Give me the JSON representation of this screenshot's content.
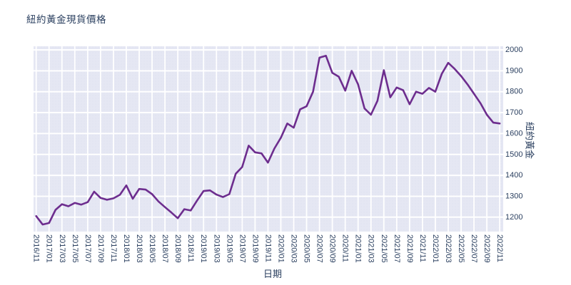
{
  "page": {
    "title": "紐約黃金現貨價格"
  },
  "colors": {
    "line": "#6d2d8e",
    "plot_background": "#e5e7f3",
    "plot_background_dot": "#d9dcec",
    "gridline": "#ffffff",
    "text": "#2a3f5f"
  },
  "chart_data": {
    "type": "line",
    "title": "紐約黃金現貨價格",
    "xlabel": "日期",
    "ylabel": "紐約黃金",
    "legend": "none",
    "grid": true,
    "y_axis_side": "right",
    "ylim": [
      1131,
      2017
    ],
    "y_ticks": [
      1200,
      1300,
      1400,
      1500,
      1600,
      1700,
      1800,
      1900,
      2000
    ],
    "x_tick_labels": [
      "2016/11",
      "2017/01",
      "2017/03",
      "2017/05",
      "2017/07",
      "2017/09",
      "2017/11",
      "2018/01",
      "2018/03",
      "2018/05",
      "2018/07",
      "2018/09",
      "2018/11",
      "2019/01",
      "2019/03",
      "2019/05",
      "2019/07",
      "2019/09",
      "2019/11",
      "2020/01",
      "2020/03",
      "2020/05",
      "2020/07",
      "2020/09",
      "2020/11",
      "2021/01",
      "2021/03",
      "2021/05",
      "2021/07",
      "2021/09",
      "2021/11",
      "2022/01",
      "2022/03",
      "2022/05",
      "2022/07",
      "2022/09",
      "2022/11"
    ],
    "x": [
      "2016/11",
      "2016/12",
      "2017/01",
      "2017/02",
      "2017/03",
      "2017/04",
      "2017/05",
      "2017/06",
      "2017/07",
      "2017/08",
      "2017/09",
      "2017/10",
      "2017/11",
      "2017/12",
      "2018/01",
      "2018/02",
      "2018/03",
      "2018/04",
      "2018/05",
      "2018/06",
      "2018/07",
      "2018/08",
      "2018/09",
      "2018/10",
      "2018/11",
      "2018/12",
      "2019/01",
      "2019/02",
      "2019/03",
      "2019/04",
      "2019/05",
      "2019/06",
      "2019/07",
      "2019/08",
      "2019/09",
      "2019/10",
      "2019/11",
      "2019/12",
      "2020/01",
      "2020/02",
      "2020/03",
      "2020/04",
      "2020/05",
      "2020/06",
      "2020/07",
      "2020/08",
      "2020/09",
      "2020/10",
      "2020/11",
      "2020/12",
      "2021/01",
      "2021/02",
      "2021/03",
      "2021/04",
      "2021/05",
      "2021/06",
      "2021/07",
      "2021/08",
      "2021/09",
      "2021/10",
      "2021/11",
      "2021/12",
      "2022/01",
      "2022/02",
      "2022/03",
      "2022/04",
      "2022/05",
      "2022/06",
      "2022/07",
      "2022/08",
      "2022/09",
      "2022/10",
      "2022/11"
    ],
    "values": [
      1205,
      1165,
      1172,
      1235,
      1262,
      1252,
      1268,
      1260,
      1272,
      1322,
      1292,
      1283,
      1290,
      1307,
      1352,
      1288,
      1335,
      1332,
      1310,
      1275,
      1248,
      1222,
      1195,
      1238,
      1232,
      1280,
      1325,
      1328,
      1308,
      1296,
      1310,
      1408,
      1440,
      1542,
      1510,
      1505,
      1461,
      1528,
      1580,
      1648,
      1628,
      1716,
      1730,
      1800,
      1963,
      1972,
      1890,
      1872,
      1805,
      1900,
      1835,
      1720,
      1690,
      1756,
      1903,
      1773,
      1820,
      1807,
      1740,
      1800,
      1790,
      1818,
      1800,
      1886,
      1938,
      1909,
      1875,
      1835,
      1790,
      1745,
      1690,
      1652,
      1648
    ]
  }
}
